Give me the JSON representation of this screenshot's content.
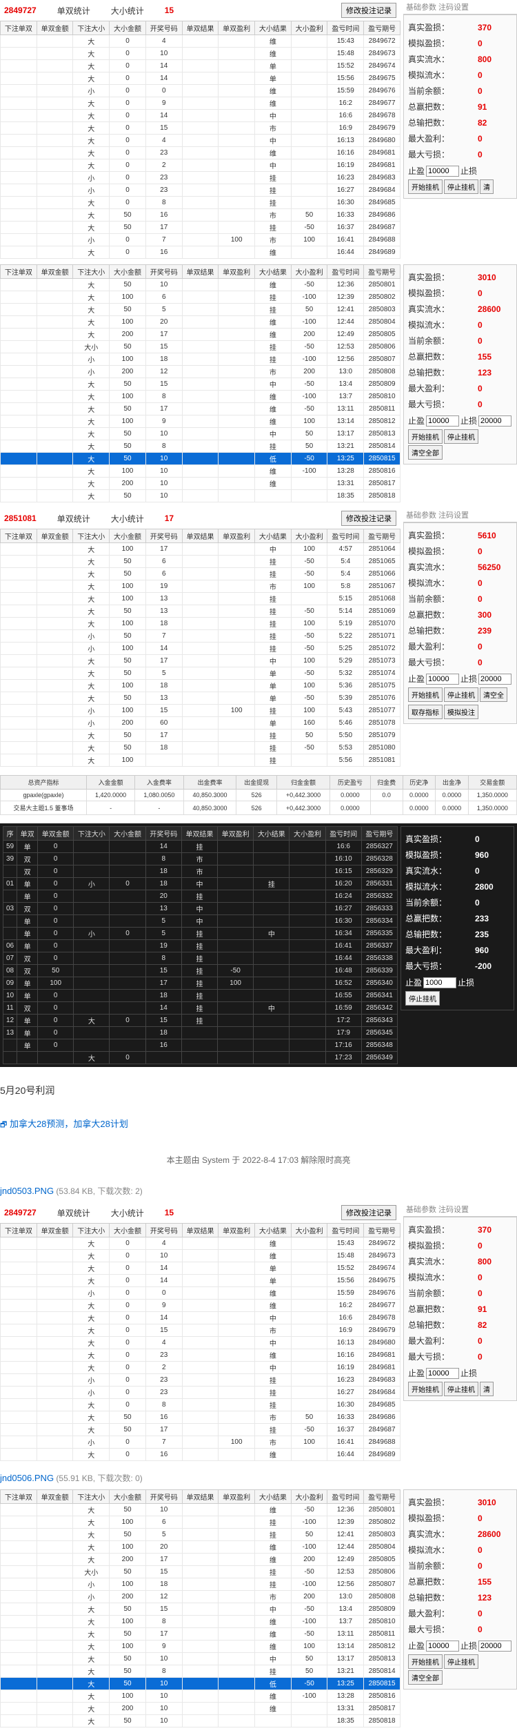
{
  "panels": [
    {
      "id": "p1",
      "header": {
        "code": "2849727",
        "mid": "单双统计",
        "rightLbl": "大小统计",
        "rightVal": "15",
        "btn": "修改投注记录"
      },
      "tabHeader": "基础参数  注码设置",
      "columns": [
        "下注单双",
        "单双金额",
        "下注大小",
        "大小金额",
        "开奖号码",
        "单双结果",
        "单双盈利",
        "大小结果",
        "大小盈利",
        "盈亏时间",
        "盈亏期号"
      ],
      "rows": [
        [
          "",
          "",
          "大",
          "0",
          "4",
          "",
          "",
          "维",
          "",
          "15:43",
          "2849672"
        ],
        [
          "",
          "",
          "大",
          "0",
          "10",
          "",
          "",
          "维",
          "",
          "15:48",
          "2849673"
        ],
        [
          "",
          "",
          "大",
          "0",
          "14",
          "",
          "",
          "单",
          "",
          "15:52",
          "2849674"
        ],
        [
          "",
          "",
          "大",
          "0",
          "14",
          "",
          "",
          "单",
          "",
          "15:56",
          "2849675"
        ],
        [
          "",
          "",
          "小",
          "0",
          "0",
          "",
          "",
          "维",
          "",
          "15:59",
          "2849676"
        ],
        [
          "",
          "",
          "大",
          "0",
          "9",
          "",
          "",
          "维",
          "",
          "16:2",
          "2849677"
        ],
        [
          "",
          "",
          "大",
          "0",
          "14",
          "",
          "",
          "中",
          "",
          "16:6",
          "2849678"
        ],
        [
          "",
          "",
          "大",
          "0",
          "15",
          "",
          "",
          "市",
          "",
          "16:9",
          "2849679"
        ],
        [
          "",
          "",
          "大",
          "0",
          "4",
          "",
          "",
          "中",
          "",
          "16:13",
          "2849680"
        ],
        [
          "",
          "",
          "大",
          "0",
          "23",
          "",
          "",
          "维",
          "",
          "16:16",
          "2849681"
        ],
        [
          "",
          "",
          "大",
          "0",
          "2",
          "",
          "",
          "中",
          "",
          "16:19",
          "2849681"
        ],
        [
          "",
          "",
          "小",
          "0",
          "23",
          "",
          "",
          "挂",
          "",
          "16:23",
          "2849683"
        ],
        [
          "",
          "",
          "小",
          "0",
          "23",
          "",
          "",
          "挂",
          "",
          "16:27",
          "2849684"
        ],
        [
          "",
          "",
          "大",
          "0",
          "8",
          "",
          "",
          "挂",
          "",
          "16:30",
          "2849685"
        ],
        [
          "",
          "",
          "大",
          "50",
          "16",
          "",
          "",
          "市",
          "50",
          "16:33",
          "2849686"
        ],
        [
          "",
          "",
          "大",
          "50",
          "17",
          "",
          "",
          "挂",
          "-50",
          "16:37",
          "2849687"
        ],
        [
          "",
          "",
          "小",
          "0",
          "7",
          "",
          "100",
          "市",
          "100",
          "16:41",
          "2849688"
        ],
        [
          "",
          "",
          "大",
          "0",
          "16",
          "",
          "",
          "维",
          "",
          "16:44",
          "2849689"
        ]
      ],
      "stats": [
        {
          "lbl": "真实盈损：",
          "val": "370"
        },
        {
          "lbl": "模拟盈损：",
          "val": "0"
        },
        {
          "lbl": "真实流水：",
          "val": "800"
        },
        {
          "lbl": "模拟流水：",
          "val": "0"
        },
        {
          "lbl": "当前余额：",
          "val": "0"
        },
        {
          "lbl": "总赢把数：",
          "val": "91"
        },
        {
          "lbl": "总输把数：",
          "val": "82"
        },
        {
          "lbl": "最大盈利：",
          "val": "0"
        },
        {
          "lbl": "最大亏损：",
          "val": "0"
        }
      ],
      "ctrl": {
        "l1": "止盈",
        "v1": "10000",
        "l2": "止损",
        "btns": [
          "开始挂机",
          "停止挂机",
          "清"
        ]
      }
    },
    {
      "id": "p2",
      "columns": [
        "下注单双",
        "单双金额",
        "下注大小",
        "大小金额",
        "开奖号码",
        "单双结果",
        "单双盈利",
        "大小结果",
        "大小盈利",
        "盈亏时间",
        "盈亏期号"
      ],
      "rows": [
        [
          "",
          "",
          "大",
          "50",
          "10",
          "",
          "",
          "维",
          "-50",
          "12:36",
          "2850801"
        ],
        [
          "",
          "",
          "大",
          "100",
          "6",
          "",
          "",
          "挂",
          "-100",
          "12:39",
          "2850802"
        ],
        [
          "",
          "",
          "大",
          "50",
          "5",
          "",
          "",
          "挂",
          "50",
          "12:41",
          "2850803"
        ],
        [
          "",
          "",
          "大",
          "100",
          "20",
          "",
          "",
          "维",
          "-100",
          "12:44",
          "2850804"
        ],
        [
          "",
          "",
          "大",
          "200",
          "17",
          "",
          "",
          "维",
          "200",
          "12:49",
          "2850805"
        ],
        [
          "",
          "",
          "大小",
          "50",
          "15",
          "",
          "",
          "挂",
          "-50",
          "12:53",
          "2850806"
        ],
        [
          "",
          "",
          "小",
          "100",
          "18",
          "",
          "",
          "挂",
          "-100",
          "12:56",
          "2850807"
        ],
        [
          "",
          "",
          "小",
          "200",
          "12",
          "",
          "",
          "市",
          "200",
          "13:0",
          "2850808"
        ],
        [
          "",
          "",
          "大",
          "50",
          "15",
          "",
          "",
          "中",
          "-50",
          "13:4",
          "2850809"
        ],
        [
          "",
          "",
          "大",
          "100",
          "8",
          "",
          "",
          "维",
          "-100",
          "13:7",
          "2850810"
        ],
        [
          "",
          "",
          "大",
          "50",
          "17",
          "",
          "",
          "维",
          "-50",
          "13:11",
          "2850811"
        ],
        [
          "",
          "",
          "大",
          "100",
          "9",
          "",
          "",
          "维",
          "100",
          "13:14",
          "2850812"
        ],
        [
          "",
          "",
          "大",
          "50",
          "10",
          "",
          "",
          "中",
          "50",
          "13:17",
          "2850813"
        ],
        [
          "",
          "",
          "大",
          "50",
          "8",
          "",
          "",
          "挂",
          "50",
          "13:21",
          "2850814"
        ],
        [
          "",
          "",
          "大",
          "50",
          "10",
          "",
          "",
          "低",
          "-50",
          "13:25",
          "2850815"
        ],
        [
          "",
          "",
          "大",
          "100",
          "10",
          "",
          "",
          "维",
          "-100",
          "13:28",
          "2850816"
        ],
        [
          "",
          "",
          "大",
          "200",
          "10",
          "",
          "",
          "维",
          "",
          "13:31",
          "2850817"
        ],
        [
          "",
          "",
          "大",
          "50",
          "10",
          "",
          "",
          "",
          "",
          "18:35",
          "2850818"
        ]
      ],
      "selectedRow": 14,
      "stats": [
        {
          "lbl": "真实盈损：",
          "val": "3010"
        },
        {
          "lbl": "模拟盈损：",
          "val": "0"
        },
        {
          "lbl": "真实流水：",
          "val": "28600"
        },
        {
          "lbl": "模拟流水：",
          "val": "0"
        },
        {
          "lbl": "当前余额：",
          "val": "0"
        },
        {
          "lbl": "总赢把数：",
          "val": "155"
        },
        {
          "lbl": "总输把数：",
          "val": "123"
        },
        {
          "lbl": "最大盈利：",
          "val": "0"
        },
        {
          "lbl": "最大亏损：",
          "val": "0"
        }
      ],
      "ctrl": {
        "l1": "止盈",
        "v1": "10000",
        "l2": "止损",
        "v2": "20000",
        "btns": [
          "开始挂机",
          "停止挂机",
          "清空全部"
        ]
      }
    },
    {
      "id": "p3",
      "header": {
        "code": "2851081",
        "mid": "单双统计",
        "rightLbl": "大小统计",
        "rightVal": "17",
        "btn": "修改投注记录"
      },
      "tabHeader": "基础参数  注码设置",
      "columns": [
        "下注单双",
        "单双金额",
        "下注大小",
        "大小金额",
        "开奖号码",
        "单双结果",
        "单双盈利",
        "大小结果",
        "大小盈利",
        "盈亏时间",
        "盈亏期号"
      ],
      "rows": [
        [
          "",
          "",
          "大",
          "100",
          "17",
          "",
          "",
          "中",
          "100",
          "4:57",
          "2851064"
        ],
        [
          "",
          "",
          "大",
          "50",
          "6",
          "",
          "",
          "挂",
          "-50",
          "5:4",
          "2851065"
        ],
        [
          "",
          "",
          "大",
          "50",
          "6",
          "",
          "",
          "挂",
          "-50",
          "5:4",
          "2851066"
        ],
        [
          "",
          "",
          "大",
          "100",
          "19",
          "",
          "",
          "市",
          "100",
          "5:8",
          "2851067"
        ],
        [
          "",
          "",
          "大",
          "100",
          "13",
          "",
          "",
          "挂",
          "",
          "5:15",
          "2851068"
        ],
        [
          "",
          "",
          "大",
          "50",
          "13",
          "",
          "",
          "挂",
          "-50",
          "5:14",
          "2851069"
        ],
        [
          "",
          "",
          "大",
          "100",
          "18",
          "",
          "",
          "挂",
          "100",
          "5:19",
          "2851070"
        ],
        [
          "",
          "",
          "小",
          "50",
          "7",
          "",
          "",
          "挂",
          "-50",
          "5:22",
          "2851071"
        ],
        [
          "",
          "",
          "小",
          "100",
          "14",
          "",
          "",
          "挂",
          "-50",
          "5:25",
          "2851072"
        ],
        [
          "",
          "",
          "大",
          "50",
          "17",
          "",
          "",
          "中",
          "100",
          "5:29",
          "2851073"
        ],
        [
          "",
          "",
          "大",
          "50",
          "5",
          "",
          "",
          "单",
          "-50",
          "5:32",
          "2851074"
        ],
        [
          "",
          "",
          "大",
          "100",
          "18",
          "",
          "",
          "单",
          "100",
          "5:36",
          "2851075"
        ],
        [
          "",
          "",
          "大",
          "50",
          "13",
          "",
          "",
          "单",
          "-50",
          "5:39",
          "2851076"
        ],
        [
          "",
          "",
          "小",
          "100",
          "15",
          "",
          "100",
          "挂",
          "100",
          "5:43",
          "2851077"
        ],
        [
          "",
          "",
          "小",
          "200",
          "60",
          "",
          "",
          "单",
          "160",
          "5:46",
          "2851078"
        ],
        [
          "",
          "",
          "大",
          "50",
          "17",
          "",
          "",
          "挂",
          "50",
          "5:50",
          "2851079"
        ],
        [
          "",
          "",
          "大",
          "50",
          "18",
          "",
          "",
          "挂",
          "-50",
          "5:53",
          "2851080"
        ],
        [
          "",
          "",
          "大",
          "100",
          "",
          "",
          "",
          "挂",
          "",
          "5:56",
          "2851081"
        ]
      ],
      "stats": [
        {
          "lbl": "真实盈损：",
          "val": "5610"
        },
        {
          "lbl": "模拟盈损：",
          "val": "0"
        },
        {
          "lbl": "真实流水：",
          "val": "56250"
        },
        {
          "lbl": "模拟流水：",
          "val": "0"
        },
        {
          "lbl": "当前余额：",
          "val": "0"
        },
        {
          "lbl": "总赢把数：",
          "val": "300"
        },
        {
          "lbl": "总输把数：",
          "val": "239"
        },
        {
          "lbl": "最大盈利：",
          "val": "0"
        },
        {
          "lbl": "最大亏损：",
          "val": "0"
        }
      ],
      "ctrl": {
        "l1": "止盈",
        "v1": "10000",
        "l2": "止损",
        "v2": "20000",
        "btns": [
          "开始挂机",
          "停止挂机",
          "清空全"
        ],
        "extra": [
          "取存指标",
          "模拟投注"
        ]
      }
    }
  ],
  "finTable": {
    "columns": [
      "总资产指标",
      "入金金额",
      "入金费率",
      "出金费率",
      "出金提现",
      "归金金额",
      "历史盈亏",
      "归金费",
      "历史净",
      "出金净",
      "交易金额"
    ],
    "rows": [
      [
        "gpaxle(gpaxle)",
        "1,420.0000",
        "1,080.0050",
        "40,850.3000",
        "526",
        "+0,442.3000",
        "0.0000",
        "0.0",
        "0.0000",
        "0.0000",
        "1,350.0000"
      ],
      [
        "交易大主题1.5 董事场",
        "-",
        "-",
        "40,850.3000",
        "526",
        "+0,442.3000",
        "0.0000",
        "",
        "0.0000",
        "0.0000",
        "1,350.0000"
      ]
    ]
  },
  "darkPanel": {
    "columns": [
      "序",
      "单双",
      "单双金额",
      "下注大小",
      "大小金额",
      "开奖号码",
      "单双结果",
      "单双盈利",
      "大小结果",
      "大小盈利",
      "盈亏时间",
      "盈亏期号"
    ],
    "rows": [
      [
        "59",
        "单",
        "0",
        "",
        "",
        "14",
        "挂",
        "",
        "",
        "",
        "16:6",
        "2856327"
      ],
      [
        "39",
        "双",
        "0",
        "",
        "",
        "8",
        "市",
        "",
        "",
        "",
        "16:10",
        "2856328"
      ],
      [
        "",
        "双",
        "0",
        "",
        "",
        "18",
        "市",
        "",
        "",
        "",
        "16:15",
        "2856329"
      ],
      [
        "01",
        "单",
        "0",
        "小",
        "0",
        "18",
        "中",
        "",
        "挂",
        "",
        "16:20",
        "2856331"
      ],
      [
        "",
        "单",
        "0",
        "",
        "",
        "20",
        "挂",
        "",
        "",
        "",
        "16:24",
        "2856332"
      ],
      [
        "03",
        "双",
        "0",
        "",
        "",
        "13",
        "中",
        "",
        "",
        "",
        "16:27",
        "2856333"
      ],
      [
        "",
        "单",
        "0",
        "",
        "",
        "5",
        "中",
        "",
        "",
        "",
        "16:30",
        "2856334"
      ],
      [
        "",
        "单",
        "0",
        "小",
        "0",
        "5",
        "挂",
        "",
        "中",
        "",
        "16:34",
        "2856335"
      ],
      [
        "06",
        "单",
        "0",
        "",
        "",
        "19",
        "挂",
        "",
        "",
        "",
        "16:41",
        "2856337"
      ],
      [
        "07",
        "双",
        "0",
        "",
        "",
        "8",
        "挂",
        "",
        "",
        "",
        "16:44",
        "2856338"
      ],
      [
        "08",
        "双",
        "50",
        "",
        "",
        "15",
        "挂",
        "-50",
        "",
        "",
        "16:48",
        "2856339"
      ],
      [
        "09",
        "单",
        "100",
        "",
        "",
        "17",
        "挂",
        "100",
        "",
        "",
        "16:52",
        "2856340"
      ],
      [
        "10",
        "单",
        "0",
        "",
        "",
        "18",
        "挂",
        "",
        "",
        "",
        "16:55",
        "2856341"
      ],
      [
        "11",
        "双",
        "0",
        "",
        "",
        "14",
        "挂",
        "",
        "中",
        "",
        "16:59",
        "2856342"
      ],
      [
        "12",
        "单",
        "0",
        "大",
        "0",
        "15",
        "挂",
        "",
        "",
        "",
        "17:2",
        "2856343"
      ],
      [
        "13",
        "单",
        "0",
        "",
        "",
        "18",
        "",
        "",
        "",
        "",
        "17:9",
        "2856345"
      ],
      [
        "",
        "单",
        "0",
        "",
        "",
        "16",
        "",
        "",
        "",
        "",
        "17:16",
        "2856348"
      ],
      [
        "",
        "",
        "",
        "大",
        "0",
        "",
        "",
        "",
        "",
        "",
        "17:23",
        "2856349"
      ]
    ],
    "stats": [
      {
        "lbl": "真实盈损：",
        "val": "0"
      },
      {
        "lbl": "模拟盈损：",
        "val": "960"
      },
      {
        "lbl": "真实流水：",
        "val": "0"
      },
      {
        "lbl": "模拟流水：",
        "val": "2800"
      },
      {
        "lbl": "当前余额：",
        "val": "0"
      },
      {
        "lbl": "总赢把数：",
        "val": "233"
      },
      {
        "lbl": "总输把数：",
        "val": "235"
      },
      {
        "lbl": "最大盈利：",
        "val": "960"
      },
      {
        "lbl": "最大亏损：",
        "val": "-200"
      }
    ],
    "ctrl": {
      "l1": "止盈",
      "v1": "1000",
      "l2": "止损",
      "btns": [
        "停止挂机"
      ]
    }
  },
  "titleText": "5月20号利润",
  "link": {
    "icon": "🗗",
    "text": "加拿大28预测，加拿大28计划"
  },
  "metaText": "本主题由 System 于 2022-8-4 17:03 解除限时高亮",
  "attachments": [
    {
      "name": "jnd0503.PNG",
      "meta": "(53.84 KB, 下载次数: 2)",
      "panelRef": 0
    },
    {
      "name": "jnd0506.PNG",
      "meta": "(55.91 KB, 下载次数: 0)",
      "panelRef": 1
    }
  ]
}
